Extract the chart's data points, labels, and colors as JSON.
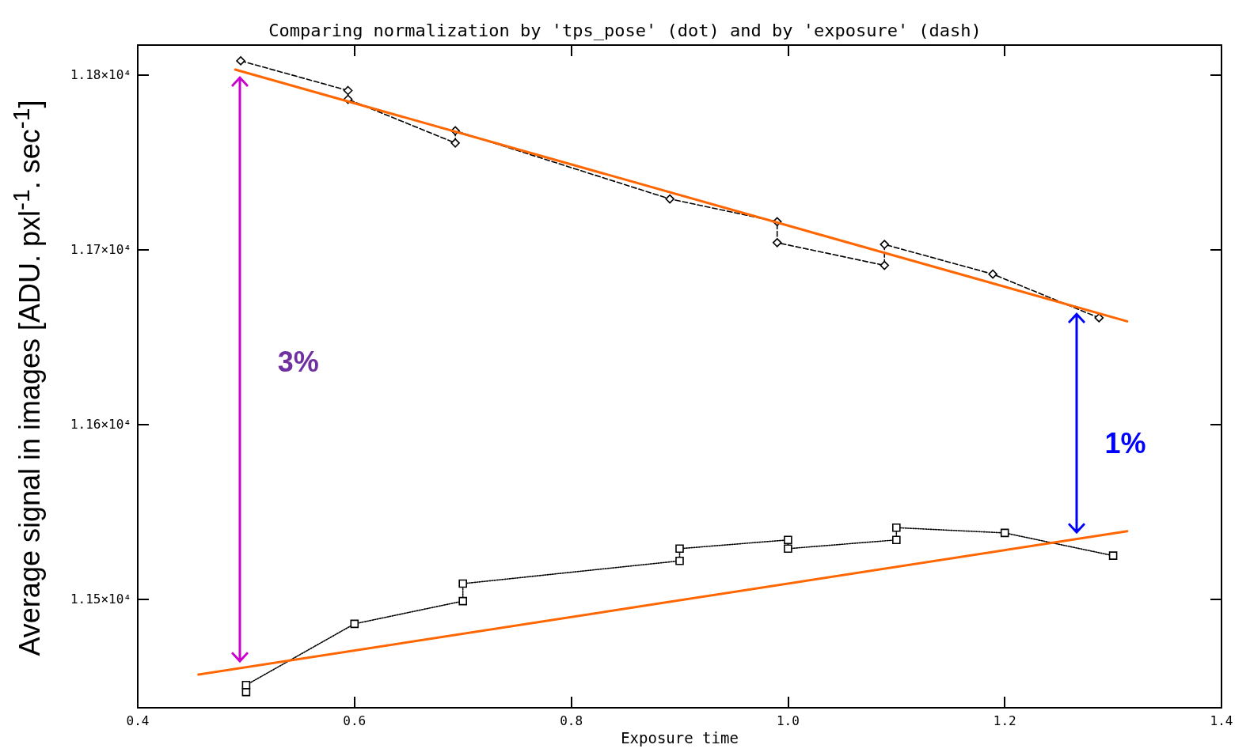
{
  "chart_data": {
    "type": "line",
    "title": "Comparing normalization by 'tps_pose' (dot) and by 'exposure' (dash)",
    "xlabel": "Exposure time",
    "ylabel": "Average signal in images [ADU. pxl$^{-1}$. sec$^{-1}$]",
    "xlim": [
      0.4,
      1.4
    ],
    "xticks": [
      0.4,
      0.6,
      0.8,
      {
        "value": 1,
        "label": "1.0"
      },
      1.2,
      1.4
    ],
    "ylim": [
      11438,
      11817
    ],
    "yticks": [
      {
        "value": 11500,
        "label": "1.15×10⁴"
      },
      {
        "value": 11600,
        "label": "1.16×10⁴"
      },
      {
        "value": 11700,
        "label": "1.17×10⁴"
      },
      {
        "value": 11800,
        "label": "1.18×10⁴"
      }
    ],
    "grid": false,
    "series": [
      {
        "color": "#000000",
        "line_style": "dashed",
        "marker": "diamond",
        "x": [
          0.495,
          0.594,
          0.594,
          0.693,
          0.693,
          0.891,
          0.99,
          0.99,
          1.089,
          1.089,
          1.189,
          1.287
        ],
        "values": [
          11808,
          11791,
          11786,
          11761,
          11768,
          11729,
          11716,
          11704,
          11691,
          11703,
          11686,
          11661
        ]
      },
      {
        "color": "#000000",
        "line_style": "dotted",
        "marker": "square",
        "x": [
          0.5,
          0.5,
          0.6,
          0.7,
          0.7,
          0.9,
          0.9,
          1.0,
          1.0,
          1.1,
          1.1,
          1.2,
          1.3
        ],
        "values": [
          11447,
          11451,
          11486,
          11499,
          11509,
          11522,
          11529,
          11534,
          11529,
          11534,
          11541,
          11538,
          11525
        ]
      },
      {
        "color": "#ff6600",
        "line_style": "solid",
        "marker": "none",
        "x": [
          0.49,
          1.313
        ],
        "values": [
          11803,
          11659
        ]
      },
      {
        "color": "#ff6600",
        "line_style": "solid",
        "marker": "none",
        "x": [
          0.456,
          1.313
        ],
        "values": [
          11457,
          11539
        ]
      }
    ],
    "annotations": [
      "3%",
      "1%"
    ]
  }
}
